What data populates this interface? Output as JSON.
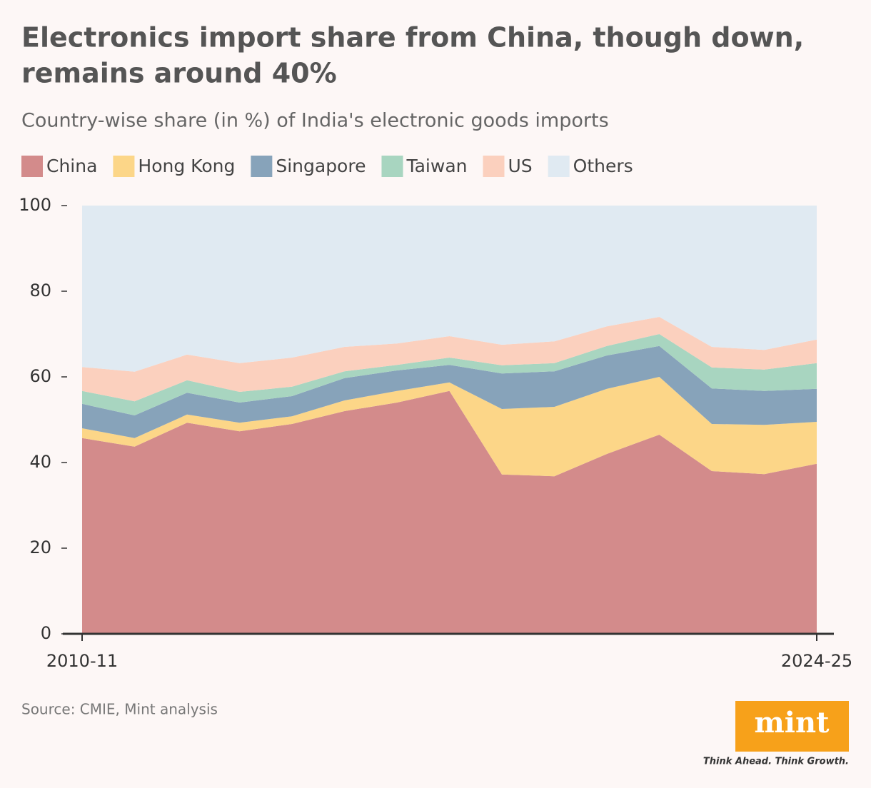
{
  "chart_data": {
    "type": "stacked-area",
    "title": [
      "Electronics import share from China, though down,",
      "remains around 40%"
    ],
    "subtitle": "Country-wise share (in %) of India's electronic goods imports",
    "source": "Source: CMIE, Mint analysis",
    "categories": [
      "2010-11",
      null,
      null,
      null,
      null,
      null,
      null,
      null,
      null,
      null,
      null,
      null,
      null,
      null,
      "2024-25"
    ],
    "series": [
      {
        "name": "China",
        "color": "#d38b8b",
        "values": [
          45.7,
          43.7,
          49.3,
          47.3,
          49.0,
          52.0,
          54.0,
          56.7,
          37.2,
          36.8,
          42.0,
          46.5,
          38.0,
          37.3,
          39.7
        ]
      },
      {
        "name": "Hong Kong",
        "color": "#fcd688",
        "values": [
          2.3,
          2.0,
          1.9,
          2.0,
          1.8,
          2.5,
          2.7,
          2.0,
          15.3,
          16.2,
          15.2,
          13.5,
          11.0,
          11.5,
          9.8
        ]
      },
      {
        "name": "Singapore",
        "color": "#87a3ba",
        "values": [
          5.7,
          5.3,
          5.1,
          4.7,
          4.7,
          5.2,
          4.8,
          4.1,
          8.3,
          8.3,
          7.8,
          7.2,
          8.3,
          7.9,
          7.7
        ]
      },
      {
        "name": "Taiwan",
        "color": "#a8d5c0",
        "values": [
          3.0,
          3.3,
          2.9,
          2.5,
          2.2,
          1.6,
          1.3,
          1.7,
          1.9,
          1.9,
          2.2,
          2.8,
          4.9,
          5.0,
          6.0
        ]
      },
      {
        "name": "US",
        "color": "#fbd0be",
        "values": [
          5.6,
          6.9,
          6.0,
          6.7,
          6.8,
          5.7,
          5.0,
          5.0,
          4.8,
          5.1,
          4.6,
          4.0,
          4.8,
          4.6,
          5.5
        ]
      },
      {
        "name": "Others",
        "color": "#e0eaf2",
        "values": [
          37.7,
          38.8,
          34.8,
          36.8,
          35.5,
          33.0,
          32.2,
          30.5,
          32.5,
          31.7,
          28.2,
          26.0,
          33.0,
          33.7,
          31.3
        ]
      }
    ],
    "ylim": [
      0,
      100
    ],
    "yticks": [
      0,
      20,
      40,
      60,
      80,
      100
    ]
  },
  "logo": {
    "text": "mint",
    "tagline": "Think Ahead. Think Growth."
  }
}
